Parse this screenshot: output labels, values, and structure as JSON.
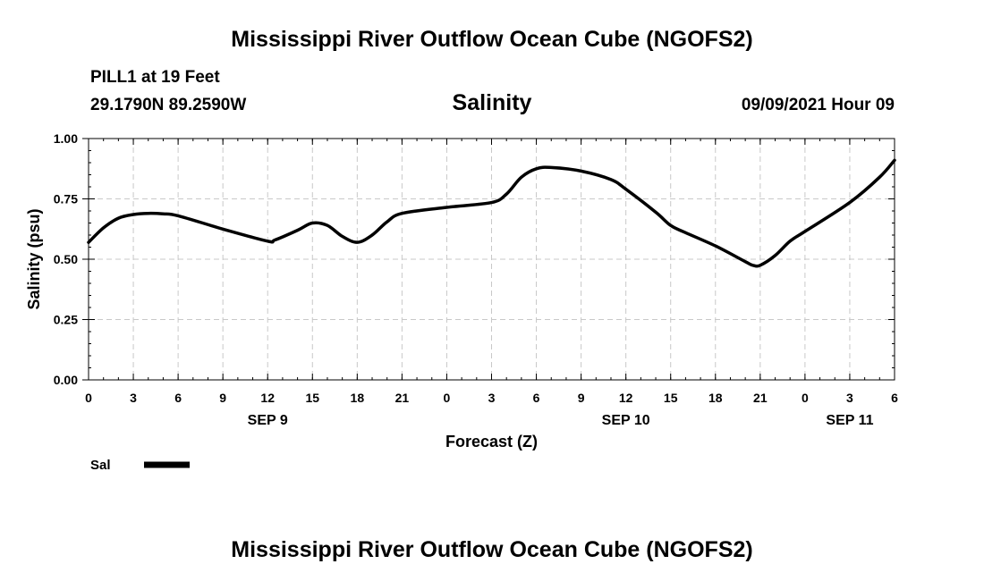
{
  "header": {
    "title": "Mississippi River Outflow Ocean Cube (NGOFS2)",
    "station": "PILL1 at 19 Feet",
    "coords": "29.1790N  89.2590W",
    "date": "09/09/2021 Hour 09"
  },
  "footer": {
    "title": "Mississippi River Outflow Ocean Cube (NGOFS2)"
  },
  "chart_data": {
    "type": "line",
    "title": "Salinity",
    "xlabel": "Forecast (Z)",
    "ylabel": "Salinity (psu)",
    "ylim": [
      0,
      1
    ],
    "xlim_hours": [
      0,
      54
    ],
    "grid": true,
    "y_ticks": [
      "0.00",
      "0.25",
      "0.50",
      "0.75",
      "1.00"
    ],
    "y_tick_values": [
      0,
      0.25,
      0.5,
      0.75,
      1.0
    ],
    "x_tick_labels": [
      "0",
      "3",
      "6",
      "9",
      "12",
      "15",
      "18",
      "21",
      "0",
      "3",
      "6",
      "9",
      "12",
      "15",
      "18",
      "21",
      "0",
      "3",
      "6"
    ],
    "x_tick_hours": [
      0,
      3,
      6,
      9,
      12,
      15,
      18,
      21,
      24,
      27,
      30,
      33,
      36,
      39,
      42,
      45,
      48,
      51,
      54
    ],
    "date_labels": [
      {
        "label": "SEP 9",
        "hour": 12
      },
      {
        "label": "SEP 10",
        "hour": 36
      },
      {
        "label": "SEP 11",
        "hour": 51
      }
    ],
    "legend": {
      "label": "Sal",
      "color": "#000000"
    },
    "series": [
      {
        "name": "Sal",
        "x": [
          0,
          1,
          2,
          3,
          4,
          5,
          6,
          9,
          12,
          12.5,
          14,
          15,
          16,
          17,
          18,
          19,
          20,
          21,
          24,
          27,
          28,
          29,
          30,
          31,
          33,
          35,
          36,
          38,
          39,
          40,
          42,
          44,
          44.5,
          45,
          46,
          47,
          48,
          51,
          53,
          54
        ],
        "y": [
          0.57,
          0.63,
          0.67,
          0.685,
          0.69,
          0.688,
          0.68,
          0.625,
          0.575,
          0.58,
          0.62,
          0.65,
          0.64,
          0.595,
          0.57,
          0.6,
          0.655,
          0.69,
          0.715,
          0.735,
          0.77,
          0.84,
          0.875,
          0.88,
          0.865,
          0.83,
          0.79,
          0.695,
          0.64,
          0.61,
          0.555,
          0.49,
          0.475,
          0.475,
          0.515,
          0.575,
          0.615,
          0.735,
          0.84,
          0.91
        ]
      }
    ]
  }
}
